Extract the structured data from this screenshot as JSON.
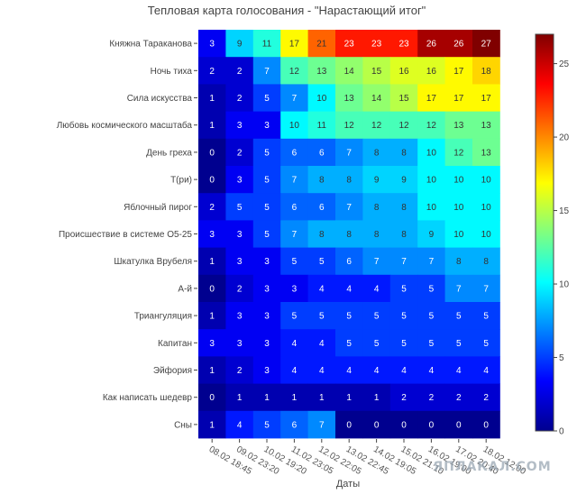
{
  "chart_data": {
    "type": "heatmap",
    "title": "Тепловая карта голосования - \"Нарастающий итог\"",
    "xlabel": "Даты",
    "ylabel": "",
    "x": [
      "08.02 18:45",
      "09.02 23:20",
      "10.02 19:20",
      "11.02 23:05",
      "12.02 22:05",
      "13.02 22:45",
      "14.02 19:05",
      "15.02 21:10",
      "16.02 19:00",
      "17.02 20:40",
      "18.02 12:00"
    ],
    "y": [
      "Княжна Тараканова",
      "Ночь тиха",
      "Сила искусства",
      "Любовь космического масштаба",
      "День греха",
      "Т(ри)",
      "Яблочный пирог",
      "Происшествие в системе О5-25",
      "Шкатулка Врубеля",
      "А-й",
      "Триангуляция",
      "Капитан",
      "Эйфория",
      "Как написать шедевр",
      "Сны"
    ],
    "z": [
      [
        3,
        9,
        11,
        17,
        21,
        23,
        23,
        23,
        26,
        26,
        27
      ],
      [
        2,
        2,
        7,
        12,
        13,
        14,
        15,
        16,
        16,
        17,
        18
      ],
      [
        1,
        2,
        5,
        7,
        10,
        13,
        14,
        15,
        17,
        17,
        17
      ],
      [
        1,
        3,
        3,
        10,
        11,
        12,
        12,
        12,
        12,
        13,
        13
      ],
      [
        0,
        2,
        5,
        6,
        6,
        7,
        8,
        8,
        10,
        12,
        13
      ],
      [
        0,
        3,
        5,
        7,
        8,
        8,
        9,
        9,
        10,
        10,
        10
      ],
      [
        2,
        5,
        5,
        6,
        6,
        7,
        8,
        8,
        10,
        10,
        10
      ],
      [
        3,
        3,
        5,
        7,
        8,
        8,
        8,
        8,
        9,
        10,
        10
      ],
      [
        1,
        3,
        3,
        5,
        5,
        6,
        7,
        7,
        7,
        8,
        8
      ],
      [
        0,
        2,
        3,
        3,
        4,
        4,
        4,
        5,
        5,
        7,
        7
      ],
      [
        1,
        3,
        3,
        5,
        5,
        5,
        5,
        5,
        5,
        5,
        5
      ],
      [
        3,
        3,
        3,
        4,
        4,
        5,
        5,
        5,
        5,
        5,
        5
      ],
      [
        1,
        2,
        3,
        4,
        4,
        4,
        4,
        4,
        4,
        4,
        4
      ],
      [
        0,
        1,
        1,
        1,
        1,
        1,
        1,
        2,
        2,
        2,
        2
      ],
      [
        1,
        4,
        5,
        6,
        7,
        0,
        0,
        0,
        0,
        0,
        0
      ]
    ],
    "zlim": [
      0,
      27
    ],
    "colorbar_ticks": [
      0,
      5,
      10,
      15,
      20,
      25
    ],
    "colorscale": "jet",
    "grid": false,
    "legend": "colorbar-right"
  },
  "watermark": "ЯПЛАКАЛ.COM"
}
